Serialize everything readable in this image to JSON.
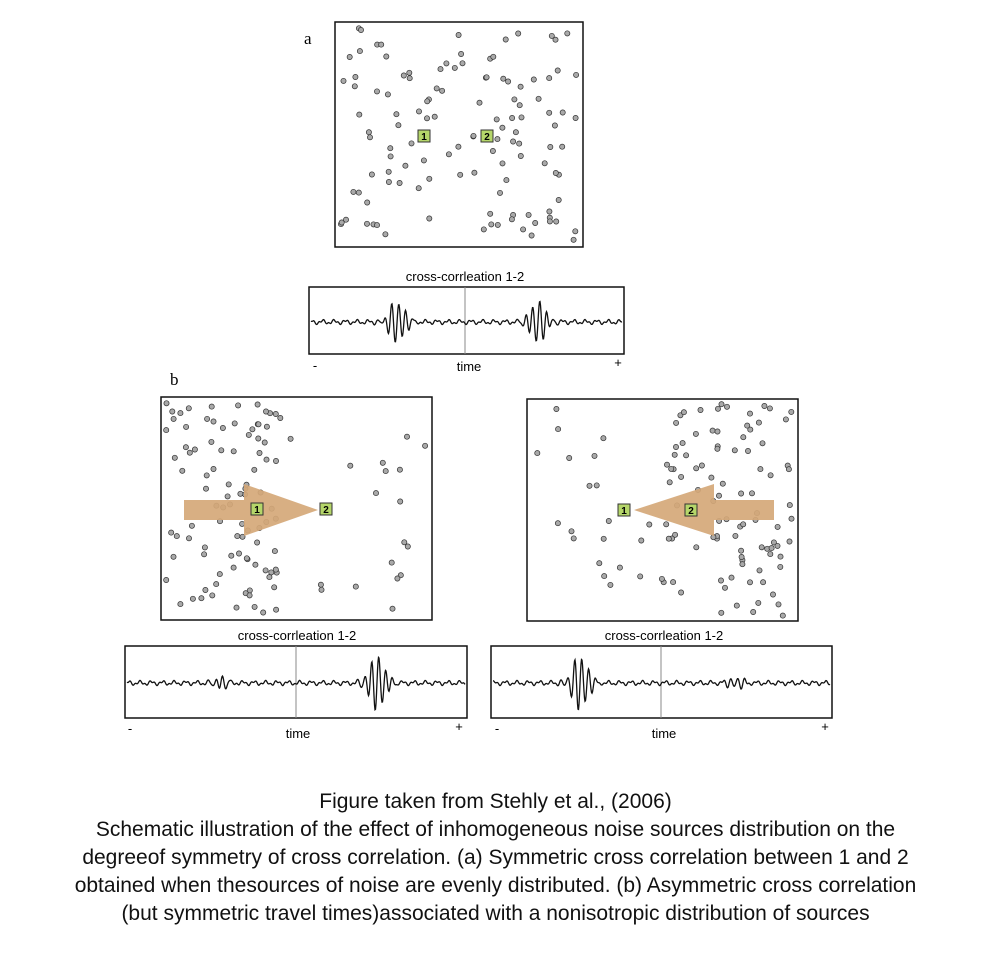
{
  "panel_a": {
    "label": "a",
    "receiver_1": "1",
    "receiver_2": "2",
    "trace_title": "cross-corrleation 1-2",
    "axis_minus": "-",
    "axis_plus": "+",
    "axis_label": "time"
  },
  "panel_b": {
    "label": "b",
    "left": {
      "receiver_1": "1",
      "receiver_2": "2",
      "trace_title": "cross-corrleation 1-2",
      "axis_minus": "-",
      "axis_plus": "+",
      "axis_label": "time"
    },
    "right": {
      "receiver_1": "1",
      "receiver_2": "2",
      "trace_title": "cross-corrleation 1-2",
      "axis_minus": "-",
      "axis_plus": "+",
      "axis_label": "time"
    }
  },
  "caption": {
    "source": "Figure taken from Stehly et al., (2006)",
    "lines": [
      "Schematic illustration of the effect of inhomogeneous noise sources distribution on the",
      "degreeof symmetry of cross correlation. (a) Symmetric cross correlation between 1 and 2",
      "obtained when thesources of noise are evenly distributed. (b) Asymmetric cross correlation",
      "(but symmetric travel times)associated with a nonisotropic distribution of sources"
    ]
  },
  "colors": {
    "source_dot": "#a9a9a9",
    "receiver_box": "#b5d66a",
    "arrow": "#d5a878",
    "trace": "#111111"
  }
}
